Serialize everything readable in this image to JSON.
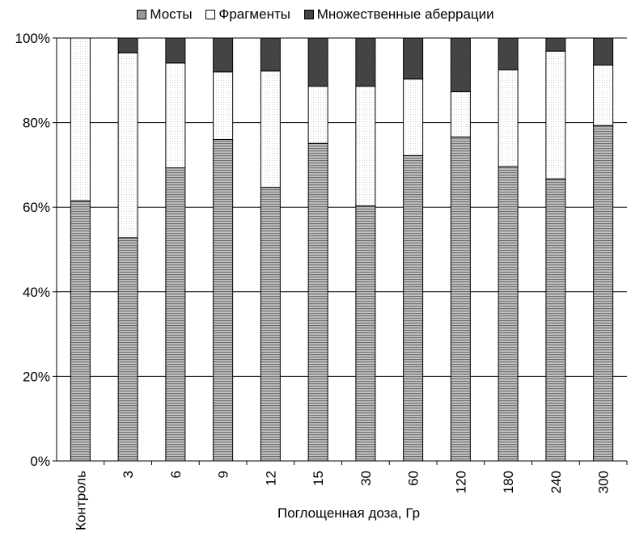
{
  "chart_data": {
    "type": "bar",
    "stacked": true,
    "normalized": true,
    "categories": [
      "Контроль",
      "3",
      "6",
      "9",
      "12",
      "15",
      "30",
      "60",
      "120",
      "180",
      "240",
      "300"
    ],
    "series": [
      {
        "name": "Мосты",
        "color": "#999999",
        "pattern": "horizontal-hatch",
        "values": [
          61.5,
          52.8,
          69.3,
          76.0,
          64.7,
          75.1,
          60.3,
          72.2,
          76.6,
          69.6,
          66.7,
          79.3
        ]
      },
      {
        "name": "Фрагменты",
        "color": "#ffffff",
        "pattern": "dotted",
        "values": [
          38.5,
          43.7,
          24.8,
          16.0,
          27.5,
          13.5,
          28.3,
          18.1,
          10.7,
          22.9,
          30.2,
          14.3
        ]
      },
      {
        "name": "Множественные аберрации",
        "color": "#444444",
        "pattern": "crosshatch",
        "values": [
          0.0,
          3.5,
          5.9,
          8.0,
          7.8,
          11.4,
          11.4,
          9.7,
          12.7,
          7.5,
          3.1,
          6.4
        ]
      }
    ],
    "xlabel": "Поглощенная доза, Гр",
    "ylabel": "",
    "ylim": [
      0,
      100
    ],
    "yticks": [
      "0%",
      "20%",
      "40%",
      "60%",
      "80%",
      "100%"
    ],
    "grid": true,
    "legend_position": "top"
  }
}
